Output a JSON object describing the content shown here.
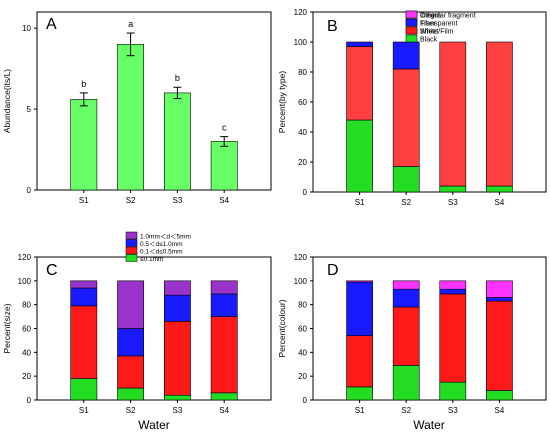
{
  "chart_data": [
    {
      "panel": "A",
      "type": "bar",
      "categories": [
        "S1",
        "S2",
        "S3",
        "S4"
      ],
      "values": [
        5.6,
        9.0,
        6.0,
        3.0
      ],
      "errors": [
        0.4,
        0.7,
        0.35,
        0.3
      ],
      "significance": [
        "b",
        "a",
        "b",
        "c"
      ],
      "xlabel": "",
      "ylabel": "Abundance(its/L)",
      "ylim": [
        0,
        11
      ],
      "yticks": [
        0,
        5,
        10
      ],
      "color": "#66ff66"
    },
    {
      "panel": "B",
      "type": "bar",
      "stacked": true,
      "categories": [
        "S1",
        "S2",
        "S3",
        "S4"
      ],
      "series": [
        {
          "name": "Sheet/Film",
          "values": [
            48,
            17,
            4,
            4
          ],
          "color": "#22dd22"
        },
        {
          "name": "Fiber",
          "values": [
            49,
            65,
            96,
            96
          ],
          "color": "#ff4040"
        },
        {
          "name": "Irregular fragment",
          "values": [
            3,
            18,
            0,
            0
          ],
          "color": "#1a1aff"
        }
      ],
      "legend_order": [
        "Irregular fragment",
        "Fiber",
        "Sheet/Film"
      ],
      "legend_position": "top-left",
      "xlabel": "",
      "ylabel": "Percent(by type)",
      "ylim": [
        0,
        120
      ],
      "yticks": [
        0,
        20,
        40,
        60,
        80,
        100,
        120
      ]
    },
    {
      "panel": "C",
      "type": "bar",
      "stacked": true,
      "categories": [
        "S1",
        "S2",
        "S3",
        "S4"
      ],
      "series": [
        {
          "name": "≤0.1mm",
          "values": [
            18,
            10,
            4,
            6
          ],
          "color": "#22dd22"
        },
        {
          "name": "0.1＜d≤0.5mm",
          "values": [
            61,
            27,
            62,
            64
          ],
          "color": "#ff1a1a"
        },
        {
          "name": "0.5＜d≤1.0mm",
          "values": [
            15,
            23,
            22,
            19
          ],
          "color": "#1a1aff"
        },
        {
          "name": "1.0mm＜d＜5mm",
          "values": [
            6,
            40,
            12,
            11
          ],
          "color": "#9933cc"
        }
      ],
      "legend_order": [
        "1.0mm＜d＜5mm",
        "0.5＜d≤1.0mm",
        "0.1＜d≤0.5mm",
        "≤0.1mm"
      ],
      "legend_position": "top-center",
      "xlabel": "Water",
      "ylabel": "Percent(size)",
      "ylim": [
        0,
        120
      ],
      "yticks": [
        0,
        20,
        40,
        60,
        80,
        100,
        120
      ]
    },
    {
      "panel": "D",
      "type": "bar",
      "stacked": true,
      "categories": [
        "S1",
        "S2",
        "S3",
        "S4"
      ],
      "series": [
        {
          "name": "Black",
          "values": [
            11,
            29,
            15,
            8
          ],
          "color": "#22dd22"
        },
        {
          "name": "White",
          "values": [
            43,
            49,
            74,
            75
          ],
          "color": "#ff1a1a"
        },
        {
          "name": "Transparent",
          "values": [
            45,
            15,
            4,
            3
          ],
          "color": "#1a1aff"
        },
        {
          "name": "Others",
          "values": [
            1,
            7,
            7,
            14
          ],
          "color": "#ff33ff"
        }
      ],
      "legend_order": [
        "Others",
        "Transparent",
        "White",
        "Black"
      ],
      "legend_position": "top-left",
      "xlabel": "Water",
      "ylabel": "Percent(colour)",
      "ylim": [
        0,
        120
      ],
      "yticks": [
        0,
        20,
        40,
        60,
        80,
        100,
        120
      ]
    }
  ]
}
